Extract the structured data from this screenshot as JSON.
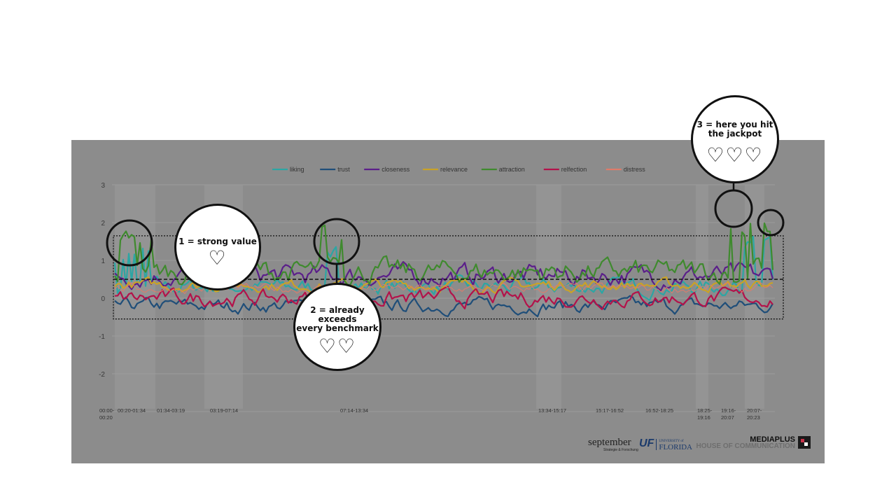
{
  "chart_data": {
    "type": "line",
    "title": "",
    "xlabel": "",
    "ylabel": "",
    "ylim": [
      -2,
      3
    ],
    "yticks": [
      "3",
      "2",
      "1",
      "0",
      "-1",
      "-2"
    ],
    "grid": true,
    "legend_placement": "top-center",
    "x_tick_labels": [
      "00:00-00:20",
      "00:20-01:34",
      "01:34-03:19",
      "03:19-07:14",
      "07:14-13:34",
      "13:34-15:17",
      "15:17-16:52",
      "16:52-18:25",
      "18:25-19:16",
      "19:16-20:07",
      "20:07-20:23"
    ],
    "series": [
      {
        "name": "liking",
        "color": "#2ca6a4"
      },
      {
        "name": "trust",
        "color": "#1f4e79"
      },
      {
        "name": "closeness",
        "color": "#5b1f8a"
      },
      {
        "name": "relevance",
        "color": "#c9a227"
      },
      {
        "name": "attraction",
        "color": "#3f8a2e"
      },
      {
        "name": "relfection",
        "color": "#b3124a"
      },
      {
        "name": "distress",
        "color": "#e07b6a"
      }
    ],
    "benchmark_line": 0.5,
    "benchmark_band": [
      -0.55,
      1.65
    ]
  },
  "callouts": {
    "c1": {
      "text": "1 = strong value",
      "hearts": "♡"
    },
    "c2": {
      "text": "2 = already\nexceeds\nevery benchmark",
      "hearts": "♡♡"
    },
    "c3": {
      "text": "3 = here you hit\nthe jackpot",
      "hearts": "♡♡♡"
    }
  },
  "logos": {
    "september": "september",
    "september_sub": "Strategie & Forschung",
    "uf": "UF",
    "florida_small": "UNIVERSITY of",
    "florida": "FLORIDA",
    "mediaplus": "MEDIAPLUS",
    "house": "HOUSE OF COMMUNICATION"
  }
}
